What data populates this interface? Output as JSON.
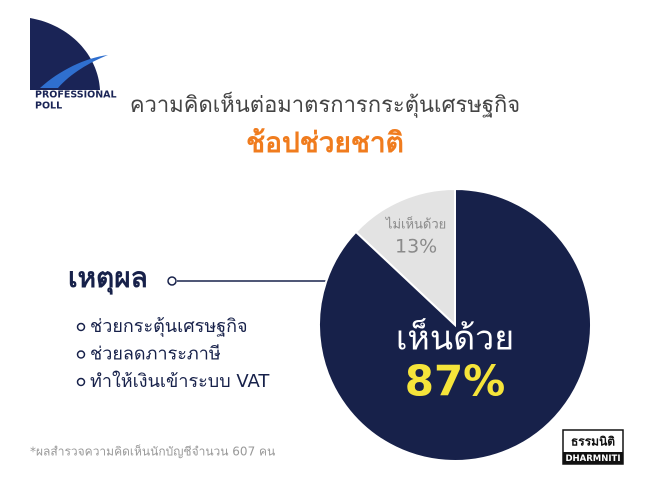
{
  "logo": {
    "line1": "PROFESSIONAL",
    "line2": "POLL"
  },
  "chart_data": {
    "type": "pie",
    "title": "ความคิดเห็นต่อมาตรการกระตุ้นเศรษฐกิจ",
    "subtitle": "ช้อปช่วยชาติ",
    "categories": [
      "ไม่เห็นด้วย",
      "เห็นด้วย"
    ],
    "values": [
      13,
      87
    ],
    "value_labels": [
      "13%",
      "87%"
    ],
    "colors": [
      "#e3e3e3",
      "#17214a"
    ],
    "direction": "counterclockwise"
  },
  "reasons": {
    "heading": "เหตุผล",
    "items": [
      "ช่วยกระตุ้นเศรษฐกิจ",
      "ช่วยลดภาระภาษี",
      "ทำให้เงินเข้าระบบ VAT"
    ]
  },
  "footnote": "*ผลสำรวจความคิดเห็นนักบัญชีจำนวน 607 คน",
  "brand": {
    "thai": "ธรรมนิติ",
    "latin": "DHARMNITI"
  }
}
